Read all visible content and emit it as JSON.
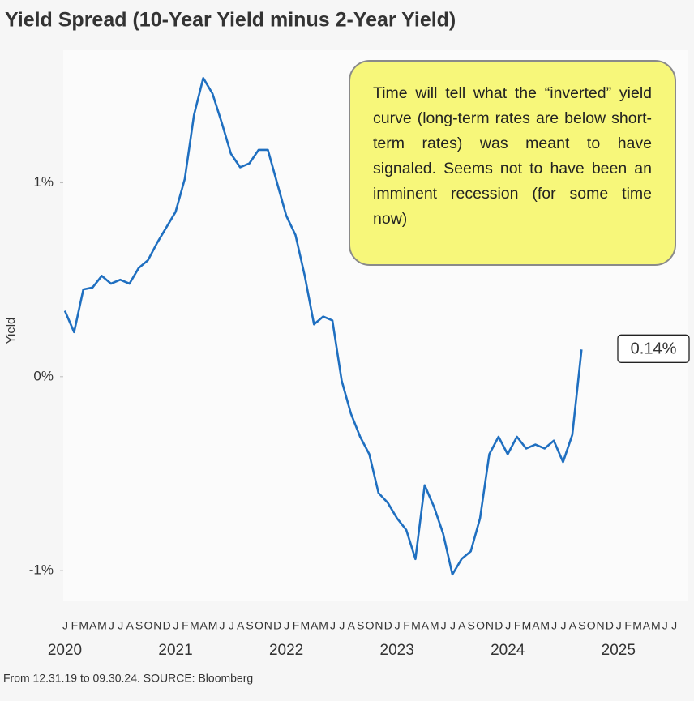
{
  "chart_data": {
    "type": "line",
    "title": "Yield Spread (10-Year Yield minus 2-Year Yield)",
    "ylabel": "Yield",
    "footer": "From 12.31.19 to 09.30.24. SOURCE: Bloomberg",
    "annotation": "Time will tell what the “inverted” yield curve (long-term rates are below short-term rates) was meant to have signaled. Seems not to have been an imminent recession (for some time now)",
    "x": [
      "2020-01",
      "2020-02",
      "2020-03",
      "2020-04",
      "2020-05",
      "2020-06",
      "2020-07",
      "2020-08",
      "2020-09",
      "2020-10",
      "2020-11",
      "2020-12",
      "2021-01",
      "2021-02",
      "2021-03",
      "2021-04",
      "2021-05",
      "2021-06",
      "2021-07",
      "2021-08",
      "2021-09",
      "2021-10",
      "2021-11",
      "2021-12",
      "2022-01",
      "2022-02",
      "2022-03",
      "2022-04",
      "2022-05",
      "2022-06",
      "2022-07",
      "2022-08",
      "2022-09",
      "2022-10",
      "2022-11",
      "2022-12",
      "2023-01",
      "2023-02",
      "2023-03",
      "2023-04",
      "2023-05",
      "2023-06",
      "2023-07",
      "2023-08",
      "2023-09",
      "2023-10",
      "2023-11",
      "2023-12",
      "2024-01",
      "2024-02",
      "2024-03",
      "2024-04",
      "2024-05",
      "2024-06",
      "2024-07",
      "2024-08",
      "2024-09"
    ],
    "series": [
      {
        "name": "Yield Spread",
        "color": "#1f6fc0",
        "values": [
          0.34,
          0.23,
          0.45,
          0.46,
          0.52,
          0.48,
          0.5,
          0.48,
          0.56,
          0.6,
          0.69,
          0.77,
          0.85,
          1.02,
          1.35,
          1.54,
          1.46,
          1.31,
          1.15,
          1.08,
          1.1,
          1.17,
          1.17,
          1.0,
          0.83,
          0.73,
          0.52,
          0.27,
          0.31,
          0.29,
          -0.02,
          -0.19,
          -0.31,
          -0.4,
          -0.6,
          -0.65,
          -0.73,
          -0.79,
          -0.94,
          -0.56,
          -0.67,
          -0.81,
          -1.02,
          -0.94,
          -0.9,
          -0.73,
          -0.4,
          -0.31,
          -0.4,
          -0.31,
          -0.37,
          -0.35,
          -0.37,
          -0.33,
          -0.44,
          -0.3,
          0.14
        ],
        "value_labels": [
          null,
          null,
          null,
          null,
          null,
          null,
          null,
          null,
          null,
          null,
          null,
          null,
          null,
          null,
          null,
          null,
          null,
          null,
          null,
          null,
          null,
          null,
          null,
          null,
          null,
          null,
          null,
          null,
          null,
          null,
          null,
          null,
          null,
          null,
          null,
          null,
          null,
          null,
          null,
          null,
          null,
          null,
          null,
          null,
          null,
          null,
          null,
          null,
          null,
          null,
          null,
          null,
          null,
          null,
          null,
          null,
          "0.14%"
        ]
      }
    ],
    "xlim": [
      "2020-01",
      "2025-07"
    ],
    "ylim": [
      -1.15,
      1.65
    ],
    "yticks": [
      {
        "value": 1,
        "label": "1%"
      },
      {
        "value": 0,
        "label": "0%"
      },
      {
        "value": -1,
        "label": "-1%"
      }
    ],
    "xticks": [
      {
        "value": "2020-01",
        "label": "J"
      },
      {
        "value": "2020-02",
        "label": "F"
      },
      {
        "value": "2020-03",
        "label": "M"
      },
      {
        "value": "2020-04",
        "label": "A"
      },
      {
        "value": "2020-05",
        "label": "M"
      },
      {
        "value": "2020-06",
        "label": "J"
      },
      {
        "value": "2020-07",
        "label": "J"
      },
      {
        "value": "2020-08",
        "label": "A"
      },
      {
        "value": "2020-09",
        "label": "S"
      },
      {
        "value": "2020-10",
        "label": "O"
      },
      {
        "value": "2020-11",
        "label": "N"
      },
      {
        "value": "2020-12",
        "label": "D"
      },
      {
        "value": "2021-01",
        "label": "J"
      },
      {
        "value": "2021-02",
        "label": "F"
      },
      {
        "value": "2021-03",
        "label": "M"
      },
      {
        "value": "2021-04",
        "label": "A"
      },
      {
        "value": "2021-05",
        "label": "M"
      },
      {
        "value": "2021-06",
        "label": "J"
      },
      {
        "value": "2021-07",
        "label": "J"
      },
      {
        "value": "2021-08",
        "label": "A"
      },
      {
        "value": "2021-09",
        "label": "S"
      },
      {
        "value": "2021-10",
        "label": "O"
      },
      {
        "value": "2021-11",
        "label": "N"
      },
      {
        "value": "2021-12",
        "label": "D"
      },
      {
        "value": "2022-01",
        "label": "J"
      },
      {
        "value": "2022-02",
        "label": "F"
      },
      {
        "value": "2022-03",
        "label": "M"
      },
      {
        "value": "2022-04",
        "label": "A"
      },
      {
        "value": "2022-05",
        "label": "M"
      },
      {
        "value": "2022-06",
        "label": "J"
      },
      {
        "value": "2022-07",
        "label": "J"
      },
      {
        "value": "2022-08",
        "label": "A"
      },
      {
        "value": "2022-09",
        "label": "S"
      },
      {
        "value": "2022-10",
        "label": "O"
      },
      {
        "value": "2022-11",
        "label": "N"
      },
      {
        "value": "2022-12",
        "label": "D"
      },
      {
        "value": "2023-01",
        "label": "J"
      },
      {
        "value": "2023-02",
        "label": "F"
      },
      {
        "value": "2023-03",
        "label": "M"
      },
      {
        "value": "2023-04",
        "label": "A"
      },
      {
        "value": "2023-05",
        "label": "M"
      },
      {
        "value": "2023-06",
        "label": "J"
      },
      {
        "value": "2023-07",
        "label": "J"
      },
      {
        "value": "2023-08",
        "label": "A"
      },
      {
        "value": "2023-09",
        "label": "S"
      },
      {
        "value": "2023-10",
        "label": "O"
      },
      {
        "value": "2023-11",
        "label": "N"
      },
      {
        "value": "2023-12",
        "label": "D"
      },
      {
        "value": "2024-01",
        "label": "J"
      },
      {
        "value": "2024-02",
        "label": "F"
      },
      {
        "value": "2024-03",
        "label": "M"
      },
      {
        "value": "2024-04",
        "label": "A"
      },
      {
        "value": "2024-05",
        "label": "M"
      },
      {
        "value": "2024-06",
        "label": "J"
      },
      {
        "value": "2024-07",
        "label": "J"
      },
      {
        "value": "2024-08",
        "label": "A"
      },
      {
        "value": "2024-09",
        "label": "S"
      },
      {
        "value": "2024-10",
        "label": "O"
      },
      {
        "value": "2024-11",
        "label": "N"
      },
      {
        "value": "2024-12",
        "label": "D"
      },
      {
        "value": "2025-01",
        "label": "J"
      },
      {
        "value": "2025-02",
        "label": "F"
      },
      {
        "value": "2025-03",
        "label": "M"
      },
      {
        "value": "2025-04",
        "label": "A"
      },
      {
        "value": "2025-05",
        "label": "M"
      },
      {
        "value": "2025-06",
        "label": "J"
      },
      {
        "value": "2025-07",
        "label": "J"
      }
    ],
    "year_ticks": [
      {
        "value": "2020-01",
        "label": "2020"
      },
      {
        "value": "2021-01",
        "label": "2021"
      },
      {
        "value": "2022-01",
        "label": "2022"
      },
      {
        "value": "2023-01",
        "label": "2023"
      },
      {
        "value": "2024-01",
        "label": "2024"
      },
      {
        "value": "2025-01",
        "label": "2025"
      }
    ],
    "grid": false
  }
}
